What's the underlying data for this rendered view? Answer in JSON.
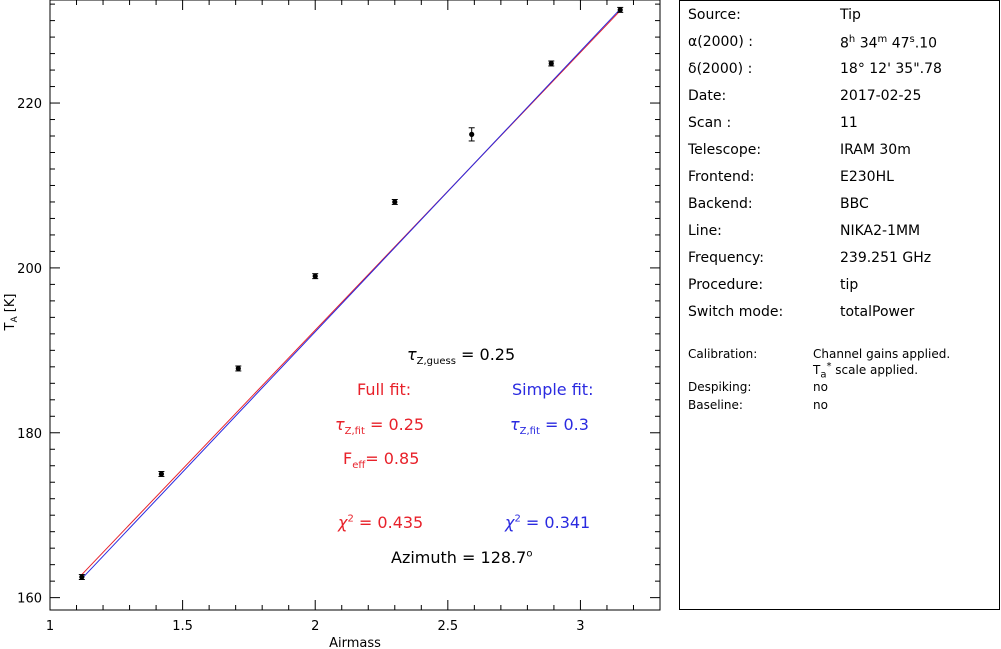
{
  "chart_data": {
    "type": "scatter",
    "title": "",
    "xlabel": "Airmass",
    "ylabel": "T",
    "ylabel_sub": "A",
    "ylabel_unit": " [K]",
    "xlim": [
      1,
      3.3
    ],
    "ylim": [
      158.5,
      232.5
    ],
    "x_ticks": [
      1,
      1.5,
      2,
      2.5,
      3
    ],
    "x_tick_labels": [
      "1",
      "1.5",
      "2",
      "2.5",
      "3"
    ],
    "y_ticks": [
      160,
      180,
      200,
      220
    ],
    "y_tick_labels": [
      "160",
      "180",
      "200",
      "220"
    ],
    "series": [
      {
        "name": "data",
        "x": [
          1.12,
          1.42,
          1.71,
          2.0,
          2.3,
          2.59,
          2.89,
          3.15
        ],
        "y": [
          162.5,
          175.0,
          187.8,
          199.0,
          208.0,
          216.2,
          224.8,
          231.3
        ],
        "yerr": [
          0.3,
          0.3,
          0.3,
          0.3,
          0.3,
          0.8,
          0.3,
          0.3
        ],
        "color": "#000000"
      },
      {
        "name": "Full fit",
        "x": [
          1.12,
          3.15
        ],
        "y": [
          162.8,
          231.2
        ],
        "color": "#e8212a"
      },
      {
        "name": "Simple fit",
        "x": [
          1.12,
          3.15
        ],
        "y": [
          162.3,
          231.4
        ],
        "color": "#2a2ae0"
      }
    ]
  },
  "annotations": {
    "tau_guess_sym": "τ",
    "tau_guess_sub": "Z,guess",
    "tau_guess_val": " = 0.25",
    "full_fit_title": "Full fit:",
    "simple_fit_title": "Simple fit:",
    "full_tau_sym": "τ",
    "full_tau_sub": "Z,fit",
    "full_tau_val": " = 0.25",
    "simple_tau_sym": "τ",
    "simple_tau_sub": "Z,fit",
    "simple_tau_val": " = 0.3",
    "feff_sym": "F",
    "feff_sub": "eff",
    "feff_val": "= 0.85",
    "full_chi_sym": "χ",
    "full_chi_sup": "2",
    "full_chi_val": " = 0.435",
    "simple_chi_sym": "χ",
    "simple_chi_sup": "2",
    "simple_chi_val": " = 0.341",
    "azimuth_label": "Azimuth = 128.7",
    "azimuth_deg": "o",
    "colors": {
      "full": "#e8212a",
      "simple": "#2a2ae0"
    }
  },
  "info": {
    "rows": [
      {
        "key": "Source:",
        "value": "Tip"
      },
      {
        "key": "α(2000) :",
        "value": "8h 34m 47s.10"
      },
      {
        "key": "δ(2000) :",
        "value": "18° 12' 35\".78"
      },
      {
        "key": "Date:",
        "value": "2017-02-25"
      },
      {
        "key": "Scan :",
        "value": "11"
      },
      {
        "key": "Telescope:",
        "value": "IRAM 30m"
      },
      {
        "key": "Frontend:",
        "value": "E230HL"
      },
      {
        "key": "Backend:",
        "value": "BBC"
      },
      {
        "key": "Line:",
        "value": "NIKA2-1MM"
      },
      {
        "key": "Frequency:",
        "value": "239.251 GHz"
      },
      {
        "key": "Procedure:",
        "value": "tip"
      },
      {
        "key": "Switch mode:",
        "value": "totalPower"
      }
    ],
    "ra_parts": {
      "h": "8",
      "h_sup": "h",
      "m": " 34",
      "m_sup": "m",
      "s": " 47",
      "s_sup": "s",
      "frac": ".10"
    },
    "calibration_label": "Calibration:",
    "calibration_value_1": "Channel gains applied.",
    "calibration_value_2_sym": "T",
    "calibration_value_2_sub": "a",
    "calibration_value_2_sup": "*",
    "calibration_value_2_rest": " scale applied.",
    "despiking_label": "Despiking:",
    "despiking_value": "no",
    "baseline_label": "Baseline:",
    "baseline_value": "no"
  }
}
